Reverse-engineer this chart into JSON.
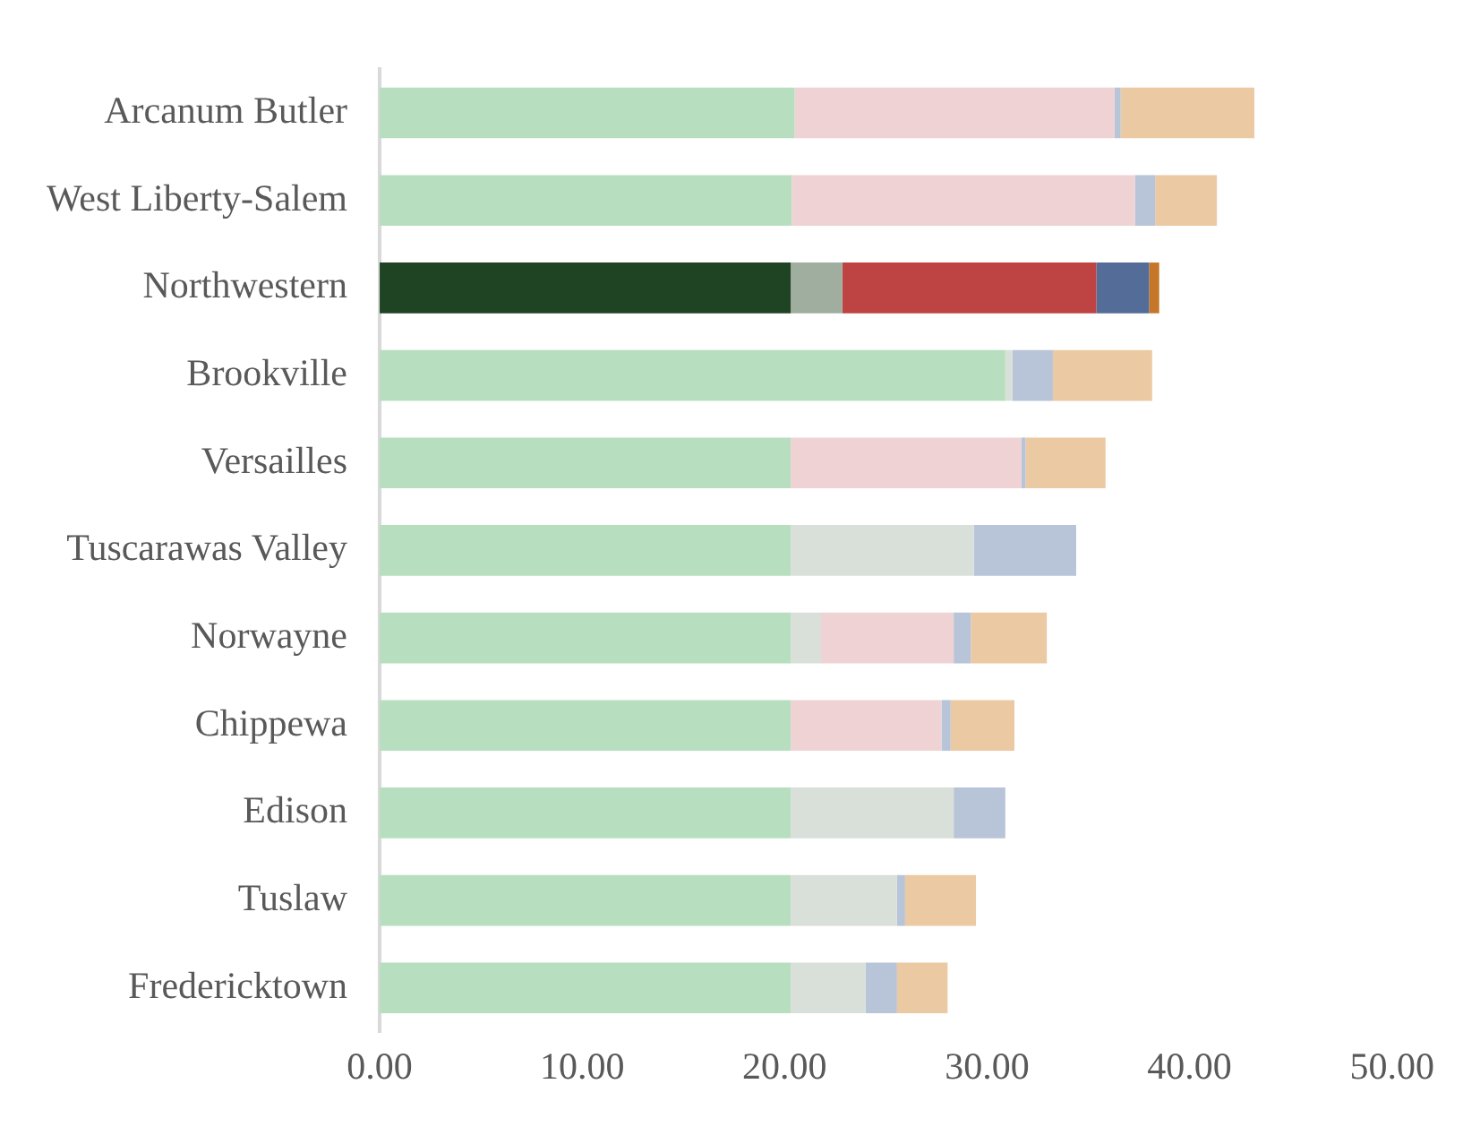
{
  "chart_data": {
    "type": "bar",
    "orientation": "horizontal",
    "stacked": true,
    "categories": [
      "Arcanum Butler",
      "West Liberty-Salem",
      "Northwestern",
      "Brookville",
      "Versailles",
      "Tuscarawas Valley",
      "Norwayne",
      "Chippewa",
      "Edison",
      "Tuslaw",
      "Fredericktown"
    ],
    "series": [
      {
        "values": [
          20.5,
          20.35,
          20.3,
          30.9,
          20.3,
          20.3,
          20.3,
          20.3,
          20.3,
          20.3,
          20.3
        ],
        "colors": [
          "#b7dfbf",
          "#b7dfbf",
          "#1f4423",
          "#b7dfbf",
          "#b7dfbf",
          "#b7dfbf",
          "#b7dfbf",
          "#b7dfbf",
          "#b7dfbf",
          "#b7dfbf",
          "#b7dfbf"
        ]
      },
      {
        "values": [
          null,
          null,
          2.55,
          0.35,
          null,
          9.05,
          1.5,
          null,
          8.05,
          5.25,
          3.7
        ],
        "colors": [
          "#d9e0d9",
          "#d9e0d9",
          "#a0ae9f",
          "#d9e0d9",
          "#d9e0d9",
          "#d9e0d9",
          "#d9e0d9",
          "#d9e0d9",
          "#d9e0d9",
          "#d9e0d9",
          "#d9e0d9"
        ]
      },
      {
        "values": [
          15.8,
          16.95,
          12.55,
          null,
          11.4,
          null,
          6.55,
          7.45,
          null,
          null,
          null
        ],
        "colors": [
          "#efd3d4",
          "#efd3d4",
          "#bd4443",
          "#efd3d4",
          "#efd3d4",
          "#efd3d4",
          "#efd3d4",
          "#efd3d4",
          "#efd3d4",
          "#efd3d4",
          "#efd3d4"
        ]
      },
      {
        "values": [
          0.3,
          1.0,
          2.6,
          2.0,
          0.2,
          5.05,
          0.85,
          0.45,
          2.55,
          0.4,
          1.55
        ],
        "colors": [
          "#b8c4d8",
          "#b8c4d8",
          "#536d98",
          "#b8c4d8",
          "#b8c4d8",
          "#b8c4d8",
          "#b8c4d8",
          "#b8c4d8",
          "#b8c4d8",
          "#b8c4d8",
          "#b8c4d8"
        ]
      },
      {
        "values": [
          6.6,
          3.05,
          0.5,
          4.9,
          3.95,
          null,
          3.75,
          3.15,
          null,
          3.5,
          2.5
        ],
        "colors": [
          "#ebc9a3",
          "#ebc9a3",
          "#c57629",
          "#ebc9a3",
          "#ebc9a3",
          "#ebc9a3",
          "#ebc9a3",
          "#ebc9a3",
          "#ebc9a3",
          "#ebc9a3",
          "#ebc9a3"
        ]
      }
    ],
    "xlim": [
      0,
      50
    ],
    "xticks": [
      {
        "value": 0,
        "label": "0.00"
      },
      {
        "value": 10,
        "label": "10.00"
      },
      {
        "value": 20,
        "label": "20.00"
      },
      {
        "value": 30,
        "label": "30.00"
      },
      {
        "value": 40,
        "label": "40.00"
      },
      {
        "value": 50,
        "label": "50.00"
      }
    ]
  }
}
